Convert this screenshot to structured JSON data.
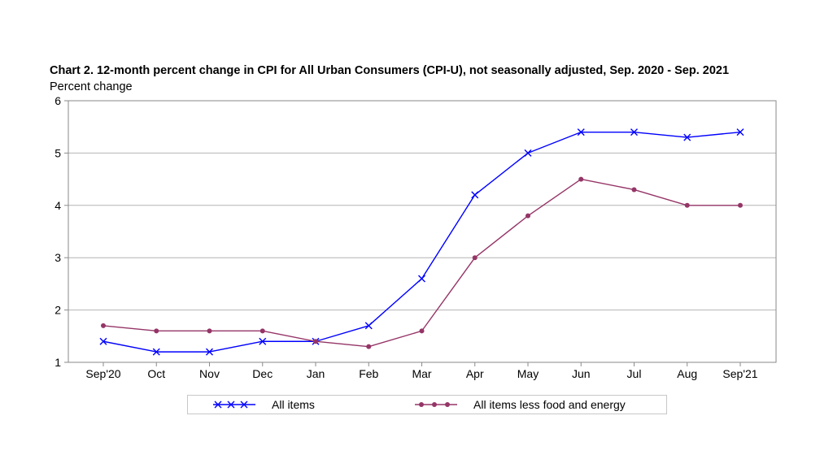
{
  "chart_data": {
    "type": "line",
    "title": "Chart 2. 12-month percent change in CPI for All Urban Consumers (CPI-U), not seasonally adjusted, Sep. 2020 - Sep. 2021",
    "ylabel": "Percent change",
    "xlabel": "",
    "categories": [
      "Sep'20",
      "Oct",
      "Nov",
      "Dec",
      "Jan",
      "Feb",
      "Mar",
      "Apr",
      "May",
      "Jun",
      "Jul",
      "Aug",
      "Sep'21"
    ],
    "ylim": [
      1,
      6
    ],
    "yticks": [
      1,
      2,
      3,
      4,
      5,
      6
    ],
    "grid": true,
    "legend_position": "bottom",
    "series": [
      {
        "name": "All items",
        "color": "#0000ff",
        "marker": "x",
        "values": [
          1.4,
          1.2,
          1.2,
          1.4,
          1.4,
          1.7,
          2.6,
          4.2,
          5.0,
          5.4,
          5.4,
          5.3,
          5.4
        ]
      },
      {
        "name": "All items less food and energy",
        "color": "#953567",
        "marker": "circle",
        "values": [
          1.7,
          1.6,
          1.6,
          1.6,
          1.4,
          1.3,
          1.6,
          3.0,
          3.8,
          4.5,
          4.3,
          4.0,
          4.0
        ]
      }
    ]
  }
}
